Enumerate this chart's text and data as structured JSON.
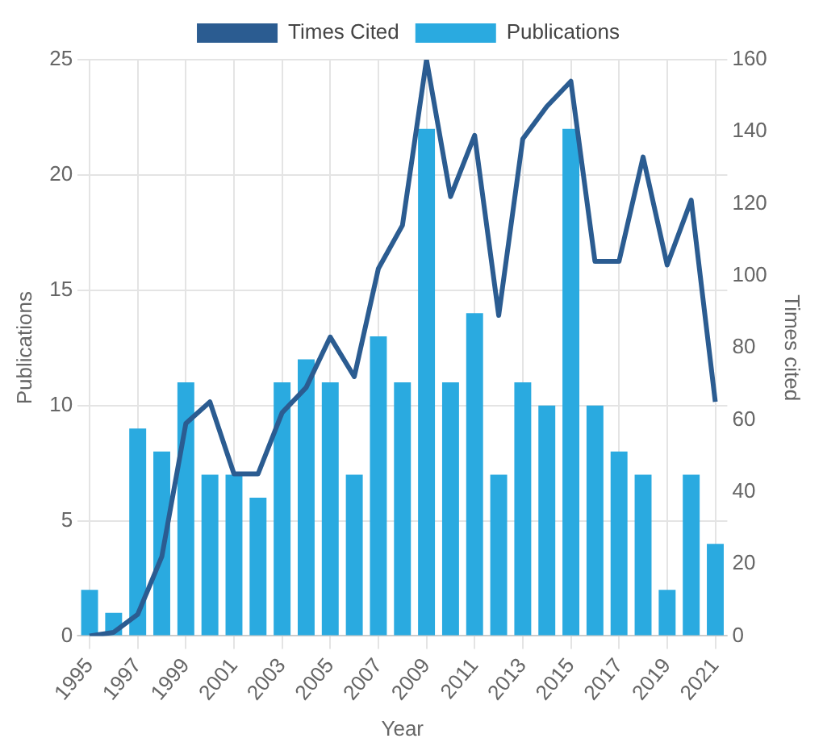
{
  "chart_data": {
    "type": "bar",
    "xlabel": "Year",
    "ylabel": "Publications",
    "y2label": "Times cited",
    "categories": [
      "1995",
      null,
      "1997",
      null,
      "1999",
      null,
      "2001",
      null,
      "2003",
      null,
      "2005",
      null,
      "2007",
      null,
      "2009",
      null,
      "2011",
      null,
      "2013",
      null,
      "2015",
      null,
      "2017",
      null,
      "2019",
      null,
      "2021"
    ],
    "series": [
      {
        "name": "Times Cited",
        "type": "line",
        "axis": "y2",
        "color": "#2b5c91",
        "values": [
          0,
          1,
          6,
          22,
          59,
          65,
          45,
          45,
          62,
          69,
          83,
          72,
          102,
          114,
          160,
          122,
          139,
          89,
          138,
          147,
          154,
          104,
          104,
          133,
          103,
          121,
          65
        ]
      },
      {
        "name": "Publications",
        "color": "#2aaae0",
        "values": [
          2,
          1,
          9,
          8,
          11,
          7,
          7,
          6,
          11,
          12,
          11,
          7,
          13,
          11,
          22,
          11,
          14,
          7,
          11,
          10,
          22,
          10,
          8,
          7,
          2,
          7,
          4
        ]
      }
    ],
    "ylim": [
      0,
      25
    ],
    "yticks": [
      0,
      5,
      10,
      15,
      20,
      25
    ],
    "y2lim": [
      0,
      160
    ],
    "y2ticks": [
      0,
      20,
      40,
      60,
      80,
      100,
      120,
      140,
      160
    ],
    "grid": true,
    "legend": "top",
    "marker": "none",
    "line_style": "solid"
  }
}
